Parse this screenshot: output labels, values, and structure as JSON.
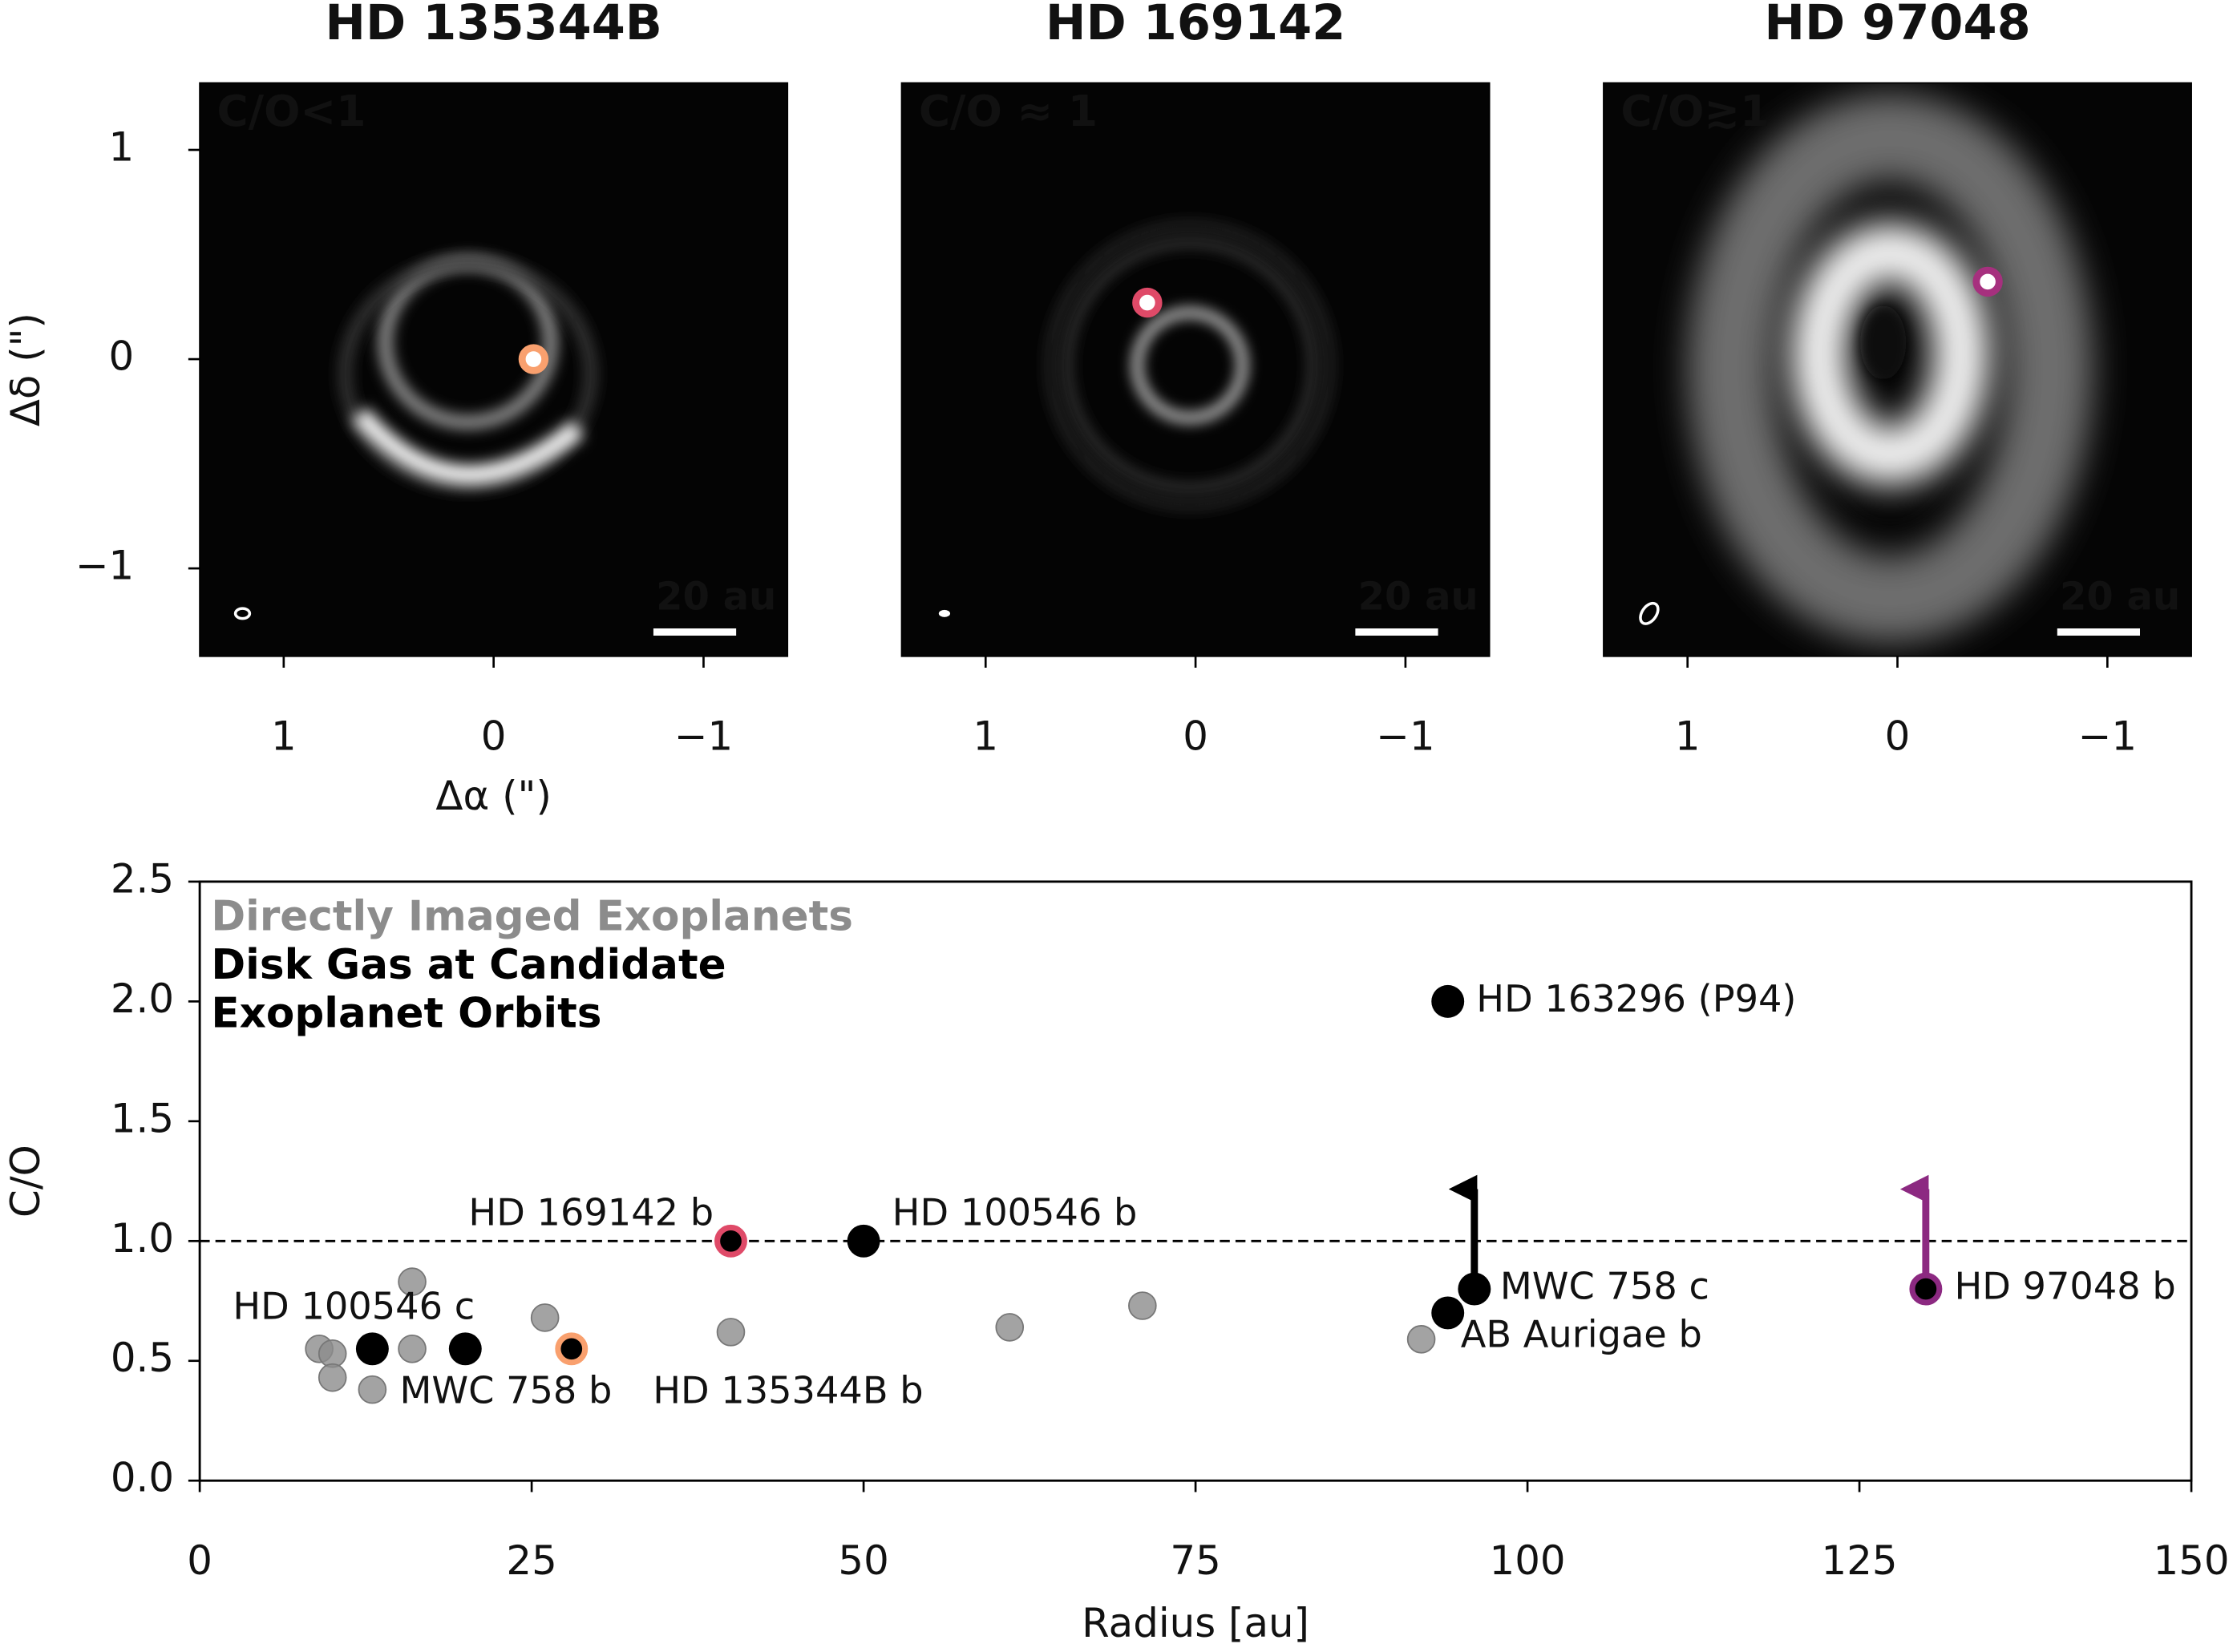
{
  "chart_data": [
    {
      "type": "image",
      "title": "HD 135344B",
      "label": "C/O<1",
      "label_color": "#f9a06e",
      "scale_bar": "20 au",
      "xlabel": "Δα (\")",
      "ylabel": "Δδ (\")",
      "xlim": [
        1.4,
        -1.4
      ],
      "ylim": [
        -1.42,
        1.32
      ],
      "xticks": [
        1,
        0,
        {
          "value": -1,
          "label": "−1"
        }
      ],
      "yticks": [
        {
          "value": -1,
          "label": "−1"
        },
        0,
        1
      ],
      "planet": {
        "x": -0.19,
        "y": 0
      }
    },
    {
      "type": "image",
      "title": "HD 169142",
      "label": "C/O ≈ 1",
      "label_color": "#df4a68",
      "scale_bar": "20 au",
      "xlim": [
        1.4,
        -1.4
      ],
      "ylim": [
        -1.42,
        1.32
      ],
      "xticks": [
        1,
        0,
        {
          "value": -1,
          "label": "−1"
        }
      ],
      "planet": {
        "x": 0.23,
        "y": 0.27
      }
    },
    {
      "type": "image",
      "title": "HD 97048",
      "label": "C/O≳1",
      "label_color": "#a6307e",
      "scale_bar": "20 au",
      "xlim": [
        1.4,
        -1.4
      ],
      "ylim": [
        -1.42,
        1.32
      ],
      "xticks": [
        1,
        0,
        {
          "value": -1,
          "label": "−1"
        }
      ],
      "planet": {
        "x": -0.43,
        "y": 0.37
      }
    },
    {
      "type": "scatter",
      "xlabel": "Radius [au]",
      "ylabel": "C/O",
      "xlim": [
        0,
        150
      ],
      "ylim": [
        0,
        2.5
      ],
      "xticks": [
        0,
        25,
        50,
        75,
        100,
        125,
        150
      ],
      "yticks": [
        {
          "value": 0,
          "label": "0.0"
        },
        0.5,
        {
          "value": 1,
          "label": "1.0"
        },
        1.5,
        {
          "value": 2,
          "label": "2.0"
        },
        2.5
      ],
      "reference_line": 1,
      "series": [
        {
          "name": "Directly Imaged Exoplanets",
          "color": "#8c8c8c",
          "x": [
            9,
            10,
            10,
            13,
            16,
            16,
            26,
            40,
            61,
            71,
            92
          ],
          "values": [
            0.55,
            0.53,
            0.43,
            0.38,
            0.83,
            0.55,
            0.68,
            0.62,
            0.64,
            0.73,
            0.59
          ]
        },
        {
          "name": "Disk Gas at Candidate Exoplanet Orbits",
          "color": "#000000",
          "x": [
            13,
            20,
            50,
            94,
            94,
            96
          ],
          "values": [
            0.55,
            0.55,
            1.0,
            2.0,
            0.7,
            0.8
          ],
          "labels": [
            "HD 100546 c",
            "MWC 758 b",
            "HD 100546 b",
            "HD 163296 (P94)",
            "AB Aurigae b",
            "MWC 758 c"
          ],
          "lower_limit": [
            false,
            false,
            false,
            false,
            false,
            true
          ]
        },
        {
          "name": "HD 169142 b",
          "color": "#df4a68",
          "x": [
            40
          ],
          "values": [
            1.0
          ],
          "lower_limit": [
            false
          ]
        },
        {
          "name": "HD 135344B b",
          "color": "#f9a06e",
          "x": [
            28
          ],
          "values": [
            0.55
          ],
          "lower_limit": [
            false
          ]
        },
        {
          "name": "HD 97048 b",
          "color": "#8c2981",
          "x": [
            130
          ],
          "values": [
            0.8
          ],
          "lower_limit": [
            true
          ]
        }
      ]
    }
  ]
}
